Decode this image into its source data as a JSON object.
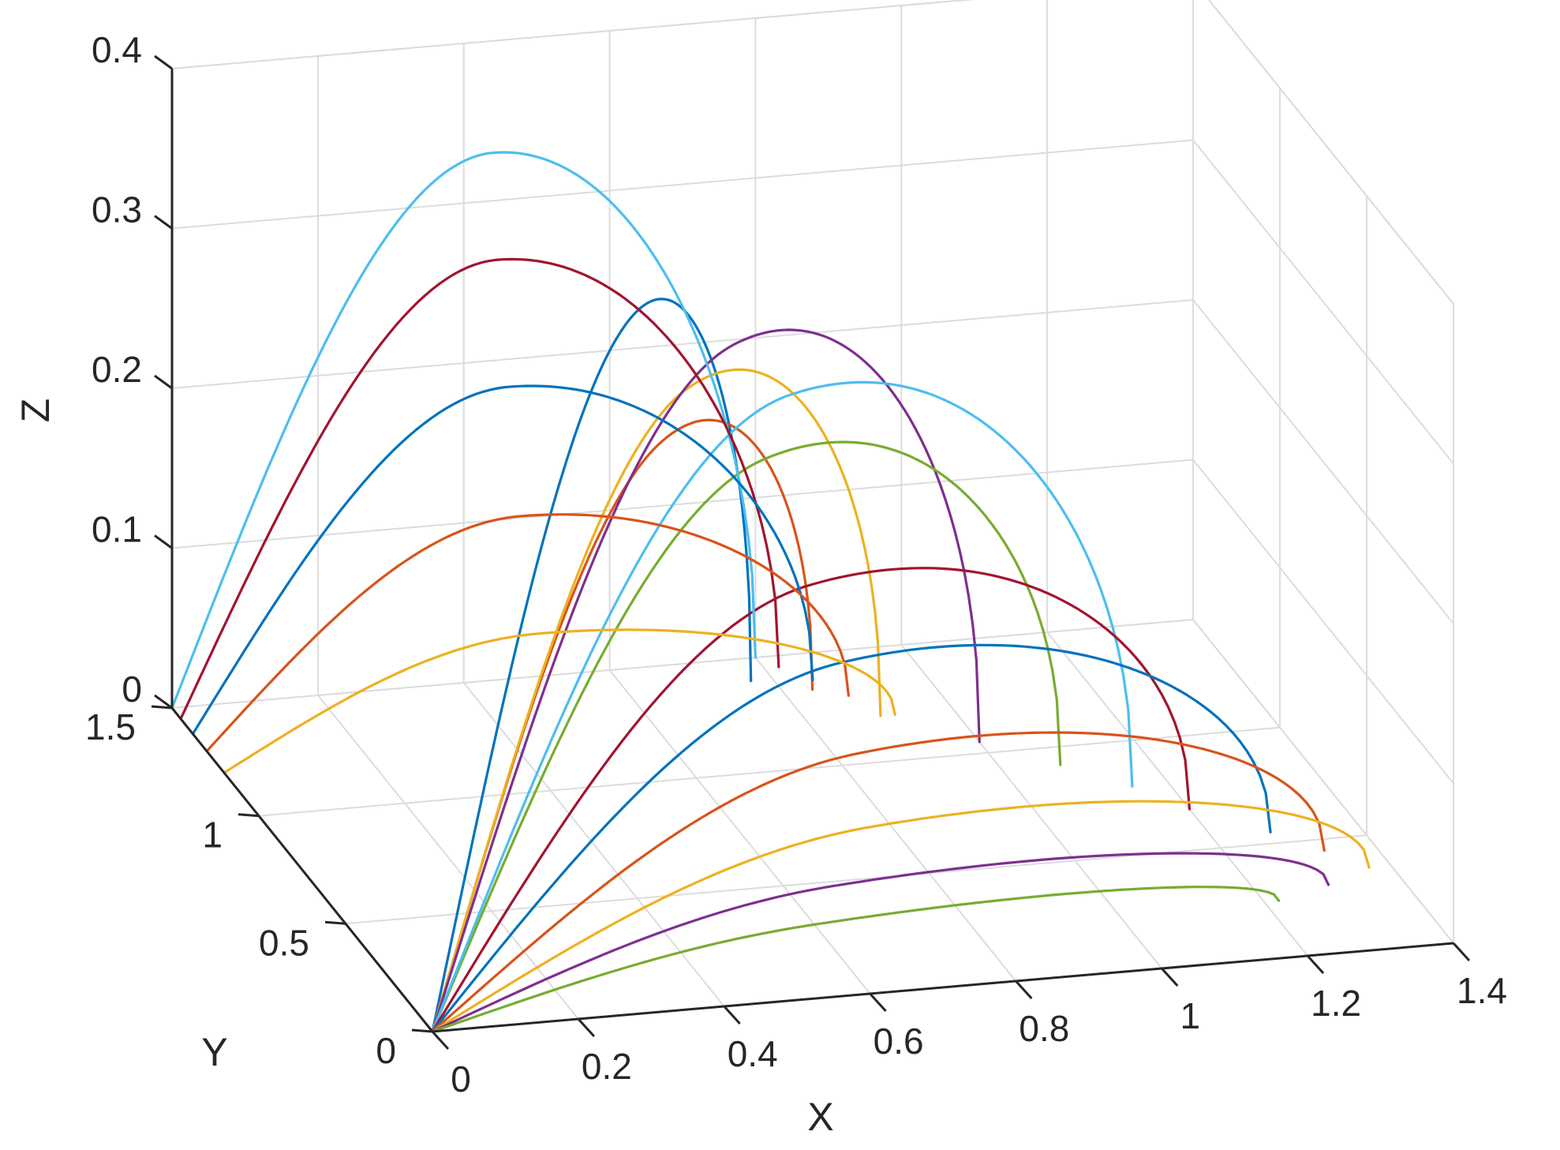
{
  "chart_data": {
    "type": "line",
    "title": "",
    "xlabel": "X",
    "ylabel": "Y",
    "zlabel": "Z",
    "xlim": [
      0,
      1.4
    ],
    "ylim": [
      0,
      1.5
    ],
    "zlim": [
      0,
      0.4
    ],
    "grid": true,
    "legend": "none",
    "xticks": [
      {
        "v": 0,
        "label": "0"
      },
      {
        "v": 0.2,
        "label": "0.2"
      },
      {
        "v": 0.4,
        "label": "0.4"
      },
      {
        "v": 0.6,
        "label": "0.6"
      },
      {
        "v": 0.8,
        "label": "0.8"
      },
      {
        "v": 1.0,
        "label": "1"
      },
      {
        "v": 1.2,
        "label": "1.2"
      },
      {
        "v": 1.4,
        "label": "1.4"
      }
    ],
    "yticks": [
      {
        "v": 0,
        "label": "0"
      },
      {
        "v": 0.5,
        "label": "0.5"
      },
      {
        "v": 1.0,
        "label": "1"
      },
      {
        "v": 1.5,
        "label": "1.5"
      }
    ],
    "zticks": [
      {
        "v": 0,
        "label": "0"
      },
      {
        "v": 0.1,
        "label": "0.1"
      },
      {
        "v": 0.2,
        "label": "0.2"
      },
      {
        "v": 0.3,
        "label": "0.3"
      },
      {
        "v": 0.4,
        "label": "0.4"
      }
    ],
    "colors": [
      "#0072BD",
      "#D95319",
      "#EDB120",
      "#7E2F8E",
      "#77AC30",
      "#4DBEEE",
      "#A2142F"
    ],
    "series": [
      {
        "start": [
          0.0,
          0.0,
          0.0
        ],
        "end": [
          0.77,
          1.4,
          0.0
        ],
        "peak_z": 0.31,
        "skew": 0.58
      },
      {
        "start": [
          0.0,
          0.0,
          0.0
        ],
        "end": [
          0.84,
          1.34,
          0.0
        ],
        "peak_z": 0.24,
        "skew": 0.55
      },
      {
        "start": [
          0.0,
          0.0,
          0.0
        ],
        "end": [
          0.9,
          1.2,
          0.0
        ],
        "peak_z": 0.29,
        "skew": 0.52
      },
      {
        "start": [
          0.0,
          0.0,
          0.0
        ],
        "end": [
          1.0,
          1.05,
          0.0
        ],
        "peak_z": 0.33,
        "skew": 0.5
      },
      {
        "start": [
          0.0,
          0.0,
          0.0
        ],
        "end": [
          1.08,
          0.92,
          0.0
        ],
        "peak_z": 0.27,
        "skew": 0.48
      },
      {
        "start": [
          0.0,
          0.0,
          0.0
        ],
        "end": [
          1.15,
          0.8,
          0.0
        ],
        "peak_z": 0.32,
        "skew": 0.46
      },
      {
        "start": [
          0.0,
          0.0,
          0.0
        ],
        "end": [
          1.2,
          0.68,
          0.0
        ],
        "peak_z": 0.21,
        "skew": 0.45
      },
      {
        "start": [
          0.0,
          0.0,
          0.0
        ],
        "end": [
          1.28,
          0.55,
          0.0
        ],
        "peak_z": 0.17,
        "skew": 0.44
      },
      {
        "start": [
          0.0,
          0.0,
          0.0
        ],
        "end": [
          1.33,
          0.45,
          0.0
        ],
        "peak_z": 0.12,
        "skew": 0.43
      },
      {
        "start": [
          0.0,
          0.0,
          0.0
        ],
        "end": [
          1.37,
          0.36,
          0.0
        ],
        "peak_z": 0.08,
        "skew": 0.42
      },
      {
        "start": [
          0.0,
          0.0,
          0.0
        ],
        "end": [
          1.3,
          0.3,
          0.0
        ],
        "peak_z": 0.05,
        "skew": 0.4
      },
      {
        "start": [
          0.0,
          0.0,
          0.0
        ],
        "end": [
          1.22,
          0.25,
          0.0
        ],
        "peak_z": 0.03,
        "skew": 0.4
      },
      {
        "start": [
          0.0,
          1.5,
          0.0
        ],
        "end": [
          0.8,
          1.5,
          0.0
        ],
        "peak_z": 0.33,
        "skew": 0.5
      },
      {
        "start": [
          0.0,
          1.45,
          0.0
        ],
        "end": [
          0.82,
          1.45,
          0.0
        ],
        "peak_z": 0.27,
        "skew": 0.48
      },
      {
        "start": [
          0.0,
          1.38,
          0.0
        ],
        "end": [
          0.85,
          1.38,
          0.0
        ],
        "peak_z": 0.2,
        "skew": 0.46
      },
      {
        "start": [
          0.0,
          1.3,
          0.0
        ],
        "end": [
          0.88,
          1.3,
          0.0
        ],
        "peak_z": 0.13,
        "skew": 0.44
      },
      {
        "start": [
          0.0,
          1.2,
          0.0
        ],
        "end": [
          0.92,
          1.2,
          0.0
        ],
        "peak_z": 0.07,
        "skew": 0.42
      }
    ]
  }
}
